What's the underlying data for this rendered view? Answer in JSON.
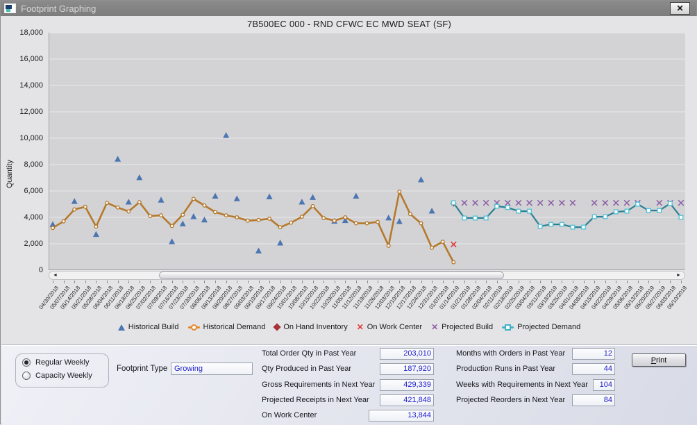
{
  "window": {
    "title": "Footprint Graphing",
    "close_icon": "✕"
  },
  "scrollbar": {
    "left_icon": "◄",
    "right_icon": "►"
  },
  "chart_data": {
    "type": "line",
    "title": "7B500EC 000 - RND CFWC EC MWD SEAT  (SF)",
    "xlabel": "",
    "ylabel": "Quantity",
    "ylim": [
      0,
      18000
    ],
    "y_tick_step": 2000,
    "y_ticks": [
      "18,000",
      "16,000",
      "14,000",
      "12,000",
      "10,000",
      "8,000",
      "6,000",
      "4,000",
      "2,000",
      "0"
    ],
    "grid": "horizontal",
    "legend_position": "bottom",
    "x": [
      "04/30/2018",
      "05/07/2018",
      "05/14/2018",
      "05/21/2018",
      "05/28/2018",
      "06/04/2018",
      "06/11/2018",
      "06/18/2018",
      "06/25/2018",
      "07/02/2018",
      "07/09/2018",
      "07/16/2018",
      "07/23/2018",
      "07/30/2018",
      "08/06/2018",
      "08/13/2018",
      "08/20/2018",
      "08/27/2018",
      "09/03/2018",
      "09/10/2018",
      "09/17/2018",
      "09/24/2018",
      "10/01/2018",
      "10/08/2018",
      "10/15/2018",
      "10/22/2018",
      "10/29/2018",
      "11/05/2018",
      "11/12/2018",
      "11/19/2018",
      "11/26/2018",
      "12/03/2018",
      "12/10/2018",
      "12/17/2018",
      "12/24/2018",
      "12/31/2018",
      "01/07/2019",
      "01/14/2019",
      "01/21/2019",
      "01/28/2019",
      "02/04/2019",
      "02/11/2019",
      "02/18/2019",
      "02/25/2019",
      "03/04/2019",
      "03/11/2019",
      "03/18/2019",
      "03/25/2019",
      "04/01/2019",
      "04/08/2019",
      "04/15/2019",
      "04/22/2019",
      "04/29/2019",
      "05/06/2019",
      "05/13/2019",
      "05/20/2019",
      "05/27/2019",
      "06/03/2019",
      "06/10/2019"
    ],
    "series": [
      {
        "name": "Historical Build",
        "marker": "triangle",
        "color": "#4C76B2",
        "points": [
          [
            0,
            3450
          ],
          [
            2,
            5200
          ],
          [
            4,
            2700
          ],
          [
            6,
            8400
          ],
          [
            7,
            5150
          ],
          [
            8,
            7000
          ],
          [
            10,
            5300
          ],
          [
            11,
            2150
          ],
          [
            12,
            3500
          ],
          [
            13,
            4050
          ],
          [
            14,
            3800
          ],
          [
            15,
            5600
          ],
          [
            16,
            10200
          ],
          [
            17,
            5400
          ],
          [
            19,
            1450
          ],
          [
            20,
            5550
          ],
          [
            21,
            2050
          ],
          [
            23,
            5150
          ],
          [
            24,
            5500
          ],
          [
            26,
            3700
          ],
          [
            27,
            3750
          ],
          [
            28,
            5600
          ],
          [
            31,
            3950
          ],
          [
            32,
            3680
          ],
          [
            34,
            6840
          ],
          [
            35,
            4470
          ]
        ]
      },
      {
        "name": "Historical Demand",
        "marker": "circle",
        "line": true,
        "width": 2.6,
        "color": "#B5792C",
        "start_index": 0,
        "values": [
          3200,
          3700,
          4600,
          4800,
          3300,
          5100,
          4750,
          4450,
          5150,
          4100,
          4150,
          3350,
          4200,
          5400,
          4900,
          4400,
          4150,
          4000,
          3750,
          3800,
          3900,
          3250,
          3600,
          4050,
          4850,
          3950,
          3750,
          4000,
          3550,
          3550,
          3650,
          1850,
          5950,
          4250,
          3550,
          1700,
          2150,
          600
        ]
      },
      {
        "name": "On Hand Inventory",
        "marker": "diamond",
        "color": "#A83238",
        "points": [
          [
            37,
            5050
          ]
        ]
      },
      {
        "name": "On Work Center",
        "marker": "x",
        "color": "#E23B3B",
        "points": [
          [
            37,
            1950
          ]
        ]
      },
      {
        "name": "Projected Build",
        "marker": "x",
        "color": "#8E62A8",
        "points": [
          [
            38,
            5100
          ],
          [
            39,
            5100
          ],
          [
            40,
            5100
          ],
          [
            41,
            5100
          ],
          [
            42,
            5100
          ],
          [
            43,
            5100
          ],
          [
            44,
            5100
          ],
          [
            45,
            5100
          ],
          [
            46,
            5100
          ],
          [
            47,
            5100
          ],
          [
            48,
            5100
          ],
          [
            50,
            5100
          ],
          [
            51,
            5100
          ],
          [
            52,
            5100
          ],
          [
            53,
            5100
          ],
          [
            54,
            5100
          ],
          [
            56,
            5100
          ],
          [
            57,
            5100
          ],
          [
            58,
            5100
          ]
        ]
      },
      {
        "name": "Projected Demand",
        "marker": "square",
        "line": true,
        "width": 2.2,
        "color": "#2C7F93",
        "marker_stroke": "#55C2D8",
        "start_index": 37,
        "values": [
          5100,
          3950,
          3950,
          3950,
          4840,
          4740,
          4470,
          4470,
          3320,
          3470,
          3470,
          3260,
          3260,
          4050,
          4050,
          4420,
          4470,
          5000,
          4520,
          4520,
          5050,
          4000
        ]
      }
    ]
  },
  "legend": {
    "items": [
      {
        "label": "Historical Build",
        "marker": "triangle",
        "color": "#4C76B2"
      },
      {
        "label": "Historical Demand",
        "marker": "line-circle",
        "color": "#E8872A"
      },
      {
        "label": "On Hand Inventory",
        "marker": "diamond",
        "color": "#A83238"
      },
      {
        "label": "On Work Center",
        "marker": "x",
        "color": "#E23B3B"
      },
      {
        "label": "Projected Build",
        "marker": "x",
        "color": "#8E62A8"
      },
      {
        "label": "Projected Demand",
        "marker": "line-square",
        "color": "#3FB1C8"
      }
    ]
  },
  "controls": {
    "radios": [
      {
        "label": "Regular Weekly",
        "selected": true
      },
      {
        "label": "Capacity Weekly",
        "selected": false
      }
    ],
    "footprint_type_label": "Footprint Type",
    "footprint_type_value": "Growing"
  },
  "stats": {
    "value_color": "#2121CC",
    "left": [
      {
        "label": "Total Order Qty in Past Year",
        "value": "203,010"
      },
      {
        "label": "Qty Produced in Past Year",
        "value": "187,920"
      },
      {
        "label": "Gross Requirements in Next Year",
        "value": "429,339"
      },
      {
        "label": "Projected Receipts in Next Year",
        "value": "421,848"
      },
      {
        "label": "On Work Center",
        "value": "13,844"
      }
    ],
    "right": [
      {
        "label": "Months with Orders in Past Year",
        "value": "12"
      },
      {
        "label": "Production Runs in Past Year",
        "value": "44"
      },
      {
        "label": "Weeks with Requirements in Next Year",
        "value": "104"
      },
      {
        "label": "Projected Reorders in Next Year",
        "value": "84"
      }
    ],
    "print_label": "Print"
  }
}
